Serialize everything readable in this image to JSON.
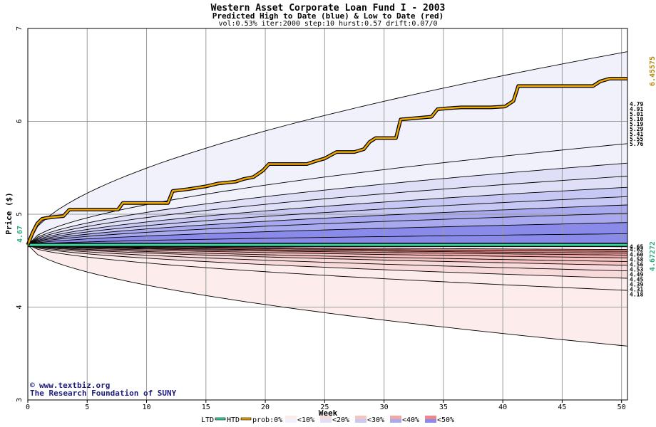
{
  "chart_data": {
    "type": "area",
    "title": "Western Asset Corporate Loan Fund I - 2003",
    "subtitle": "Predicted High to Date (blue) &  Low to Date (red)",
    "params": "vol:0.53% iter:2000 step:10 hurst:0.57 drift:0.07/0",
    "xlabel": "Week",
    "ylabel": "Price ($)",
    "xlim": [
      0,
      50.5
    ],
    "ylim": [
      3,
      7
    ],
    "xticks": [
      0,
      5,
      10,
      15,
      20,
      25,
      30,
      35,
      40,
      45,
      50
    ],
    "yticks": [
      3,
      4,
      5,
      6,
      7
    ],
    "grid": true,
    "start_price": 4.67,
    "start_label": "4.67",
    "ltd_value": 4.67272,
    "ltd_label": "4.67272",
    "htd_value": 6.45575,
    "htd_label": "6.45575",
    "band_colors": [
      "#f1f1fc",
      "#dfdff8",
      "#c8c8f4",
      "#a9a9f0",
      "#8a8aea",
      "#fcecec",
      "#f9dada",
      "#f7c4c4",
      "#f3a8a8",
      "#ef8888"
    ],
    "upper_ends": [
      {
        "value": 6.75,
        "label": ""
      },
      {
        "value": 5.76,
        "label": "5.76"
      },
      {
        "value": 5.55,
        "label": "5.55"
      },
      {
        "value": 5.41,
        "label": "5.41"
      },
      {
        "value": 5.29,
        "label": "5.29"
      },
      {
        "value": 5.19,
        "label": "5.19"
      },
      {
        "value": 5.1,
        "label": "5.10"
      },
      {
        "value": 5.01,
        "label": "5.01"
      },
      {
        "value": 4.91,
        "label": "4.91"
      },
      {
        "value": 4.79,
        "label": "4.79"
      },
      {
        "value": 4.65,
        "label": "4.65"
      }
    ],
    "lower_ends": [
      {
        "value": 3.58,
        "label": ""
      },
      {
        "value": 4.18,
        "label": "4.18"
      },
      {
        "value": 4.31,
        "label": "4.31"
      },
      {
        "value": 4.39,
        "label": "4.39"
      },
      {
        "value": 4.45,
        "label": "4.45"
      },
      {
        "value": 4.49,
        "label": "4.49"
      },
      {
        "value": 4.53,
        "label": "4.53"
      },
      {
        "value": 4.56,
        "label": "4.56"
      },
      {
        "value": 4.58,
        "label": "4.58"
      },
      {
        "value": 4.6,
        "label": "4.60"
      },
      {
        "value": 4.62,
        "label": "4.62"
      }
    ],
    "htd_series": {
      "name": "HTD",
      "x": [
        0,
        0.4,
        0.8,
        1.2,
        1.6,
        2.2,
        3.0,
        3.5,
        4.2,
        5.5,
        7.6,
        8.0,
        11.8,
        12.2,
        13.5,
        15.0,
        16.0,
        17.5,
        18.2,
        19.0,
        19.8,
        20.3,
        23.5,
        24.2,
        25.0,
        26.0,
        27.5,
        28.3,
        28.8,
        29.3,
        31.0,
        31.4,
        34.0,
        34.5,
        35.3,
        36.5,
        39.0,
        40.2,
        40.9,
        41.3,
        45.5,
        47.6,
        48.2,
        49.0,
        50.5
      ],
      "y": [
        4.67,
        4.8,
        4.9,
        4.95,
        4.96,
        4.97,
        4.98,
        5.05,
        5.05,
        5.05,
        5.05,
        5.12,
        5.12,
        5.25,
        5.27,
        5.3,
        5.33,
        5.35,
        5.38,
        5.4,
        5.47,
        5.54,
        5.54,
        5.57,
        5.6,
        5.67,
        5.67,
        5.7,
        5.78,
        5.82,
        5.82,
        6.02,
        6.05,
        6.13,
        6.14,
        6.15,
        6.15,
        6.16,
        6.22,
        6.38,
        6.38,
        6.38,
        6.43,
        6.46,
        6.46
      ]
    },
    "ltd_series": {
      "name": "LTD",
      "x": [
        0,
        50.5
      ],
      "y": [
        4.67,
        4.67
      ]
    },
    "legend": [
      "LTD",
      "HTD",
      "prob:0%",
      "<10%",
      "<20%",
      "<30%",
      "<40%",
      "<50%"
    ],
    "legend_placement": "bottom",
    "watermark_1": "www.textbiz.org",
    "watermark_2": "The Research Foundation of SUNY",
    "copyright_symbol": "©"
  }
}
